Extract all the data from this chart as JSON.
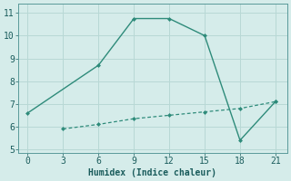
{
  "line1_x": [
    0,
    6,
    9,
    12,
    15,
    18,
    21
  ],
  "line1_y": [
    6.6,
    8.7,
    10.75,
    10.75,
    10.0,
    5.4,
    7.1
  ],
  "line2_x": [
    3,
    6,
    9,
    12,
    15,
    18,
    21
  ],
  "line2_y": [
    5.9,
    6.1,
    6.35,
    6.5,
    6.65,
    6.8,
    7.1
  ],
  "line_color": "#2e8b7a",
  "bg_color": "#d5ecea",
  "grid_color": "#b8d8d5",
  "xlabel": "Humidex (Indice chaleur)",
  "xlim": [
    -0.8,
    22.0
  ],
  "ylim": [
    4.85,
    11.4
  ],
  "xticks": [
    0,
    3,
    6,
    9,
    12,
    15,
    18,
    21
  ],
  "yticks": [
    5,
    6,
    7,
    8,
    9,
    10,
    11
  ],
  "xlabel_fontsize": 7,
  "tick_fontsize": 7
}
